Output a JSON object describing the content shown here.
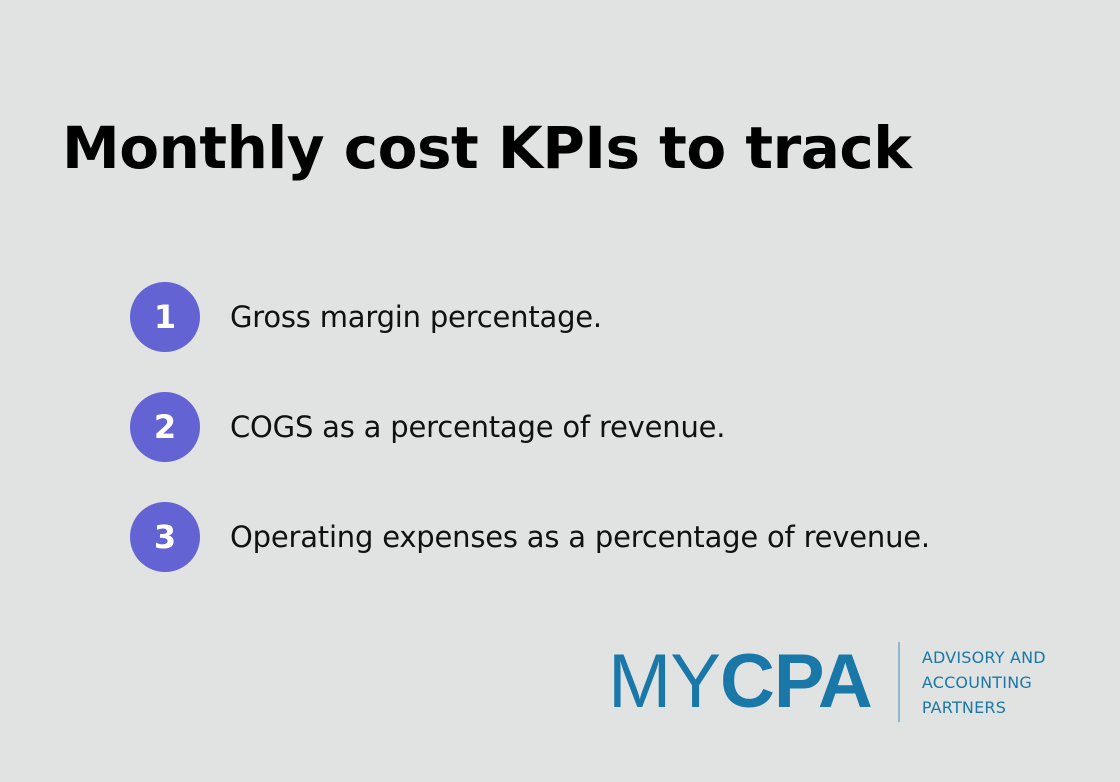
{
  "title": "Monthly cost KPIs to track",
  "colors": {
    "background": "#e1e3e2",
    "badge": "#6463d3",
    "brand": "#1a78a8",
    "divider": "#8fb6c9"
  },
  "items": [
    {
      "number": "1",
      "text": "Gross margin percentage."
    },
    {
      "number": "2",
      "text": "COGS as a percentage of revenue."
    },
    {
      "number": "3",
      "text": "Operating expenses as a percentage of revenue."
    }
  ],
  "logo": {
    "light": "MY",
    "bold": "CPA",
    "tagline": [
      "ADVISORY AND",
      "ACCOUNTING",
      "PARTNERS"
    ]
  }
}
